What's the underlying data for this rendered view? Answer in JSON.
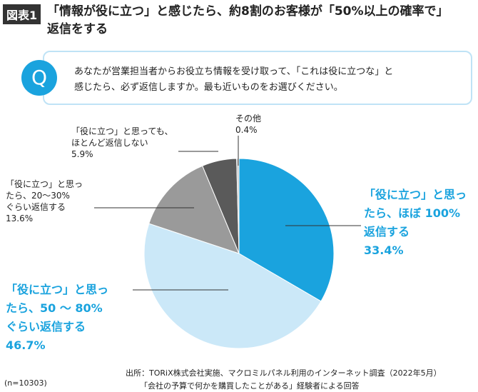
{
  "header": {
    "badge": "図表1",
    "title": "「情報が役に立つ」と感じたら、約8割のお客様が「50%以上の確率で」\n返信をする"
  },
  "question": {
    "mark": "Q",
    "text": "あなたが営業担当者からお役立ち情報を受け取って、「これは役に立つな」と\n感じたら、必ず返信しますか。最も近いものをお選びください。"
  },
  "chart_data": {
    "type": "pie",
    "categories": [
      "「役に立つ」と思っ\nたら、ほぼ 100%\n返信する",
      "「役に立つ」と思っ\nたら、50 ～ 80%\nぐらい返信する",
      "「役に立つ」と思っ\nたら、20～30%\nぐらい返信する",
      "「役に立つ」と思っても、\nほとんど返信しない",
      "その他"
    ],
    "values": [
      33.4,
      46.7,
      13.6,
      5.9,
      0.4
    ],
    "value_labels": [
      "33.4%",
      "46.7%",
      "13.6%",
      "5.9%",
      "0.4%"
    ],
    "colors": [
      "#1aa3de",
      "#cbe8f8",
      "#9a9a9a",
      "#5a5a5a",
      "#c8c8c8"
    ]
  },
  "notes": {
    "sample": "(n=10303)",
    "source": [
      "出所：TORiX株式会社実施、マクロミルパネル利用のインターネット調査（2022年5月）",
      "「会社の予算で何かを購買したことがある」経験者による回答"
    ]
  }
}
